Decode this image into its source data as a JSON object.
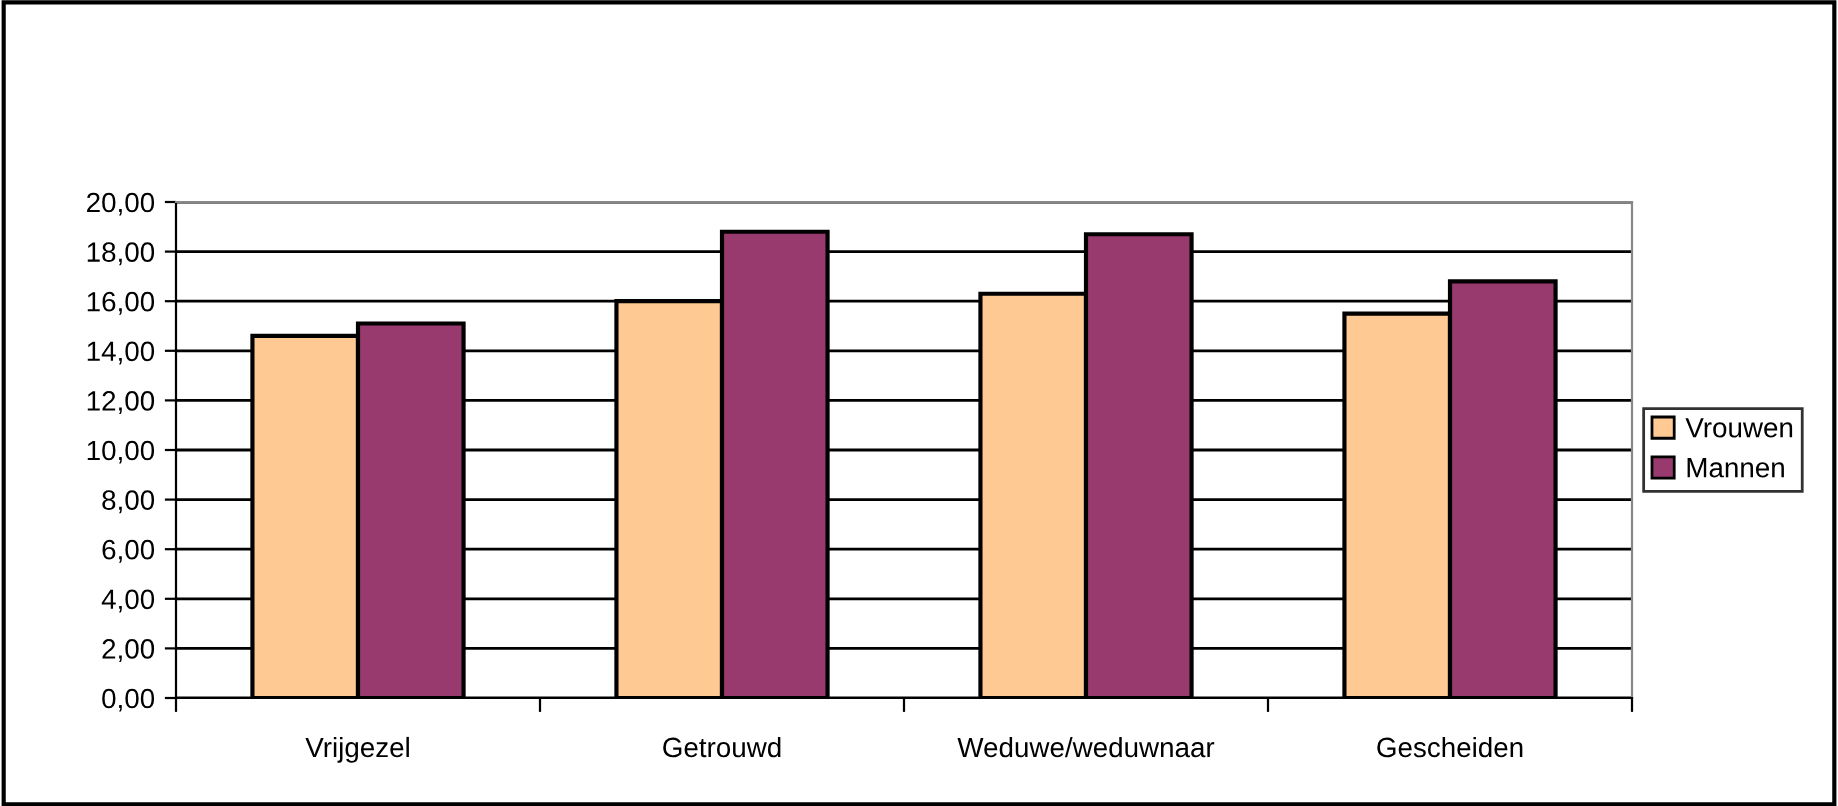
{
  "chart_data": {
    "type": "bar",
    "categories": [
      "Vrijgezel",
      "Getrouwd",
      "Weduwe/weduwnaar",
      "Gescheiden"
    ],
    "series": [
      {
        "name": "Vrouwen",
        "color": "#ffc993",
        "values": [
          14.6,
          16.0,
          16.3,
          15.5
        ]
      },
      {
        "name": "Mannen",
        "color": "#993a6e",
        "values": [
          15.1,
          18.8,
          18.7,
          16.8
        ]
      }
    ],
    "ylim": [
      0,
      20
    ],
    "yticks": [
      {
        "value": 0,
        "label": "0,00"
      },
      {
        "value": 2,
        "label": "2,00"
      },
      {
        "value": 4,
        "label": "4,00"
      },
      {
        "value": 6,
        "label": "6,00"
      },
      {
        "value": 8,
        "label": "8,00"
      },
      {
        "value": 10,
        "label": "10,00"
      },
      {
        "value": 12,
        "label": "12,00"
      },
      {
        "value": 14,
        "label": "14,00"
      },
      {
        "value": 16,
        "label": "16,00"
      },
      {
        "value": 18,
        "label": "18,00"
      },
      {
        "value": 20,
        "label": "20,00"
      }
    ],
    "grid": "y",
    "legend": "right"
  }
}
